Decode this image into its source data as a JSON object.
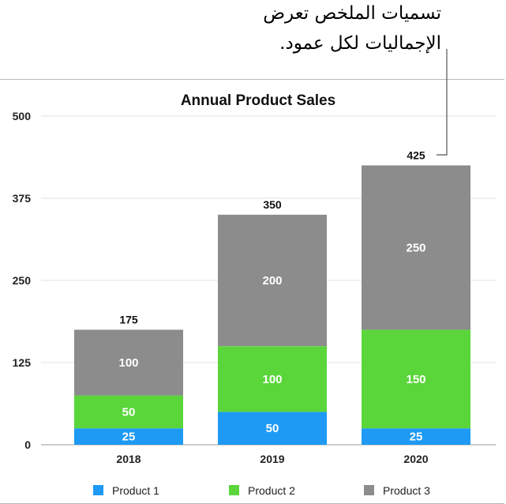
{
  "callout": {
    "line1": "تسميات الملخص تعرض",
    "line2": "الإجماليات لكل عمود."
  },
  "chart_data": {
    "type": "bar",
    "stacked": true,
    "title": "Annual Product Sales",
    "categories": [
      "2018",
      "2019",
      "2020"
    ],
    "series": [
      {
        "name": "Product 1",
        "color": "#1e9af5",
        "values": [
          25,
          50,
          25
        ]
      },
      {
        "name": "Product 2",
        "color": "#5ad63b",
        "values": [
          50,
          100,
          150
        ]
      },
      {
        "name": "Product 3",
        "color": "#8c8c8c",
        "values": [
          100,
          200,
          250
        ]
      }
    ],
    "totals": [
      175,
      350,
      425
    ],
    "y_ticks": [
      0,
      125,
      250,
      375,
      500
    ],
    "ylim": [
      0,
      500
    ],
    "grid": true,
    "legend": "bottom",
    "value_labels": true,
    "total_labels": true
  }
}
